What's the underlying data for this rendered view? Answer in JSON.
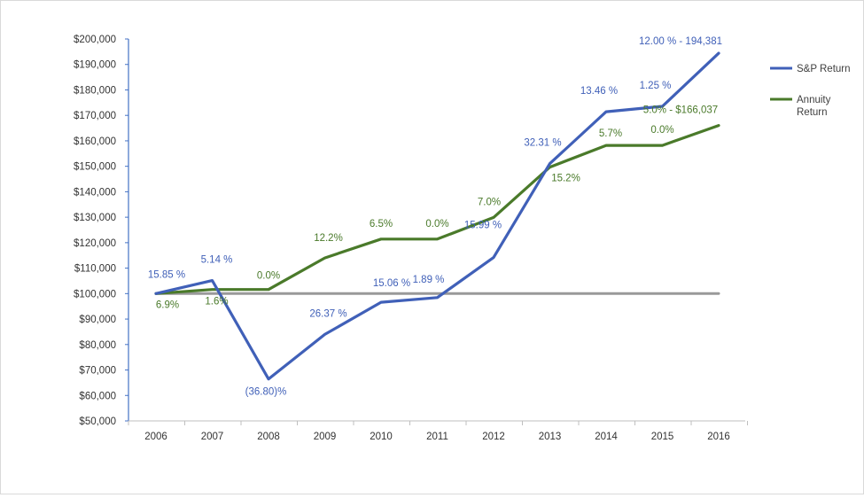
{
  "chart_data": {
    "type": "line",
    "title": "",
    "xlabel": "",
    "ylabel": "",
    "categories": [
      "2006",
      "2007",
      "2008",
      "2009",
      "2010",
      "2011",
      "2012",
      "2013",
      "2014",
      "2015",
      "2016"
    ],
    "y_ticks": [
      "$50,000",
      "$60,000",
      "$70,000",
      "$80,000",
      "$90,000",
      "$100,000",
      "$110,000",
      "$120,000",
      "$130,000",
      "$140,000",
      "$150,000",
      "$160,000",
      "$170,000",
      "$180,000",
      "$190,000",
      "$200,000"
    ],
    "ylim": [
      50000,
      200000
    ],
    "grid": false,
    "legend_position": "right",
    "series": [
      {
        "name": "S&P Return",
        "legend_lines": [
          "S&P Return"
        ],
        "color": "#4060b8",
        "values": [
          100000,
          105140,
          66450,
          83970,
          96610,
          98440,
          114180,
          151080,
          171420,
          173560,
          194381
        ],
        "labels": [
          "15.85 %",
          "5.14 %",
          "(36.80)%",
          "26.37 %",
          "15.06 %",
          "1.89 %",
          "15.99 %",
          "32.31 %",
          "13.46 %",
          "1.25 %",
          "12.00 % - 194,381"
        ]
      },
      {
        "name": "Annuity Return",
        "legend_lines": [
          "Annuity",
          "Return"
        ],
        "color": "#4a7a2a",
        "values": [
          100000,
          101600,
          101600,
          114000,
          121410,
          121410,
          129910,
          149660,
          158190,
          158190,
          166037
        ],
        "labels": [
          "6.9%",
          "1.6%",
          "0.0%",
          "12.2%",
          "6.5%",
          "0.0%",
          "7.0%",
          "15.2%",
          "5.7%",
          "0.0%",
          "5.0% - $166,037"
        ]
      },
      {
        "name": "",
        "color": "#999999",
        "values": [
          100000,
          100000,
          100000,
          100000,
          100000,
          100000,
          100000,
          100000,
          100000,
          100000,
          100000
        ],
        "labels": []
      }
    ]
  }
}
